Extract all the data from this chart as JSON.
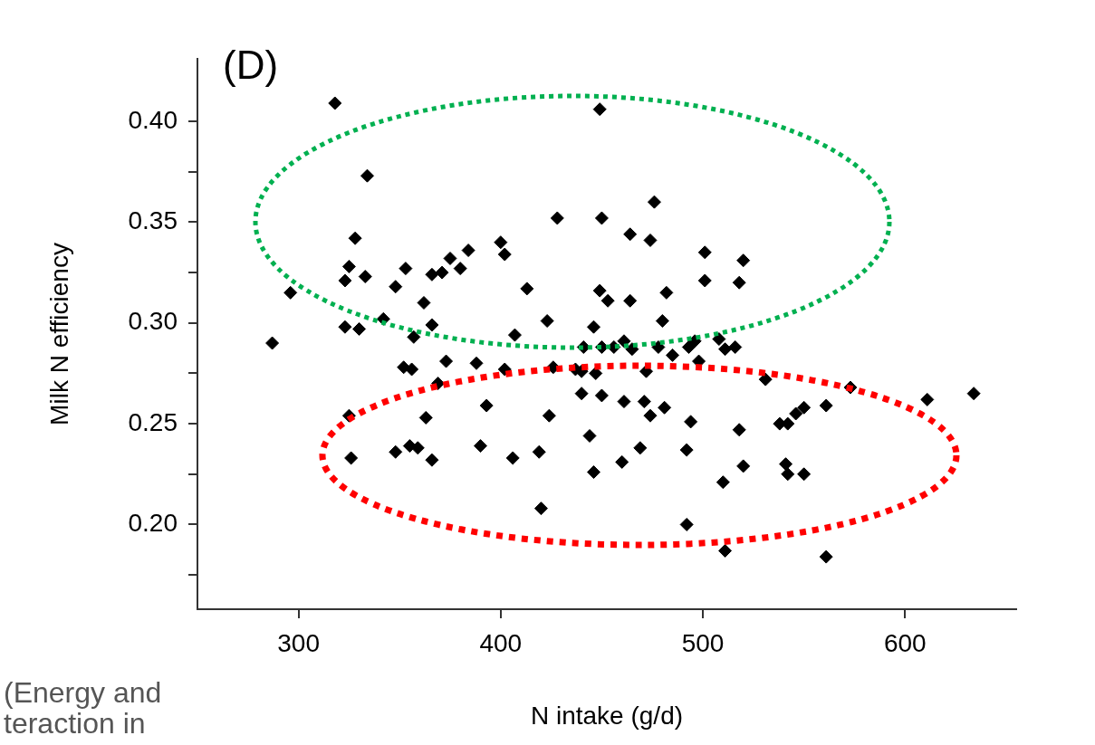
{
  "chart_data": {
    "type": "scatter",
    "title": "(D)",
    "xlabel": "N intake (g/d)",
    "ylabel": "Milk N efficiency",
    "xlim": [
      250,
      655
    ],
    "xticks": [
      300,
      400,
      500,
      600
    ],
    "ylim": [
      0.158,
      0.431
    ],
    "yticks": [
      {
        "value": 0.175,
        "label": null
      },
      {
        "value": 0.2,
        "label": "0.20"
      },
      {
        "value": 0.225,
        "label": null
      },
      {
        "value": 0.25,
        "label": "0.25"
      },
      {
        "value": 0.275,
        "label": null
      },
      {
        "value": 0.3,
        "label": "0.30"
      },
      {
        "value": 0.325,
        "label": null
      },
      {
        "value": 0.35,
        "label": "0.35"
      },
      {
        "value": 0.375,
        "label": null
      },
      {
        "value": 0.4,
        "label": "0.40"
      }
    ],
    "grid": false,
    "legend": false,
    "marker": "diamond",
    "annotations": [
      "(Energy and",
      "teraction in"
    ],
    "series": [
      {
        "color": "#000000",
        "x": [
          318,
          334,
          328,
          325,
          323,
          333,
          296,
          353,
          348,
          366,
          371,
          375,
          380,
          384,
          400,
          362,
          342,
          323,
          330,
          357,
          366,
          287,
          352,
          356,
          369,
          373,
          388,
          393,
          325,
          326,
          363,
          348,
          355,
          359,
          366,
          390,
          449,
          476,
          428,
          450,
          464,
          474,
          402,
          501,
          520,
          501,
          518,
          413,
          449,
          453,
          464,
          482,
          423,
          446,
          480,
          407,
          441,
          450,
          456,
          461,
          465,
          478,
          485,
          493,
          496,
          508,
          511,
          516,
          402,
          426,
          437,
          440,
          447,
          472,
          498,
          440,
          450,
          461,
          471,
          481,
          474,
          424,
          494,
          518,
          444,
          406,
          419,
          469,
          460,
          492,
          446,
          520,
          510,
          420,
          492,
          511,
          531,
          573,
          611,
          634,
          561,
          550,
          546,
          538,
          542,
          541,
          542,
          550,
          561
        ],
        "values": [
          0.409,
          0.373,
          0.342,
          0.328,
          0.321,
          0.323,
          0.315,
          0.327,
          0.318,
          0.324,
          0.325,
          0.332,
          0.327,
          0.336,
          0.34,
          0.31,
          0.302,
          0.298,
          0.297,
          0.293,
          0.299,
          0.29,
          0.278,
          0.277,
          0.27,
          0.281,
          0.28,
          0.259,
          0.254,
          0.233,
          0.253,
          0.236,
          0.239,
          0.238,
          0.232,
          0.239,
          0.406,
          0.36,
          0.352,
          0.352,
          0.344,
          0.341,
          0.334,
          0.335,
          0.331,
          0.321,
          0.32,
          0.317,
          0.316,
          0.311,
          0.311,
          0.315,
          0.301,
          0.298,
          0.301,
          0.294,
          0.288,
          0.288,
          0.288,
          0.291,
          0.287,
          0.288,
          0.284,
          0.288,
          0.291,
          0.292,
          0.287,
          0.288,
          0.277,
          0.278,
          0.277,
          0.276,
          0.275,
          0.276,
          0.281,
          0.265,
          0.264,
          0.261,
          0.261,
          0.258,
          0.254,
          0.254,
          0.251,
          0.247,
          0.244,
          0.233,
          0.236,
          0.238,
          0.231,
          0.237,
          0.226,
          0.229,
          0.221,
          0.208,
          0.2,
          0.187,
          0.272,
          0.268,
          0.262,
          0.265,
          0.259,
          0.258,
          0.255,
          0.25,
          0.25,
          0.23,
          0.225,
          0.225,
          0.184
        ]
      }
    ]
  }
}
